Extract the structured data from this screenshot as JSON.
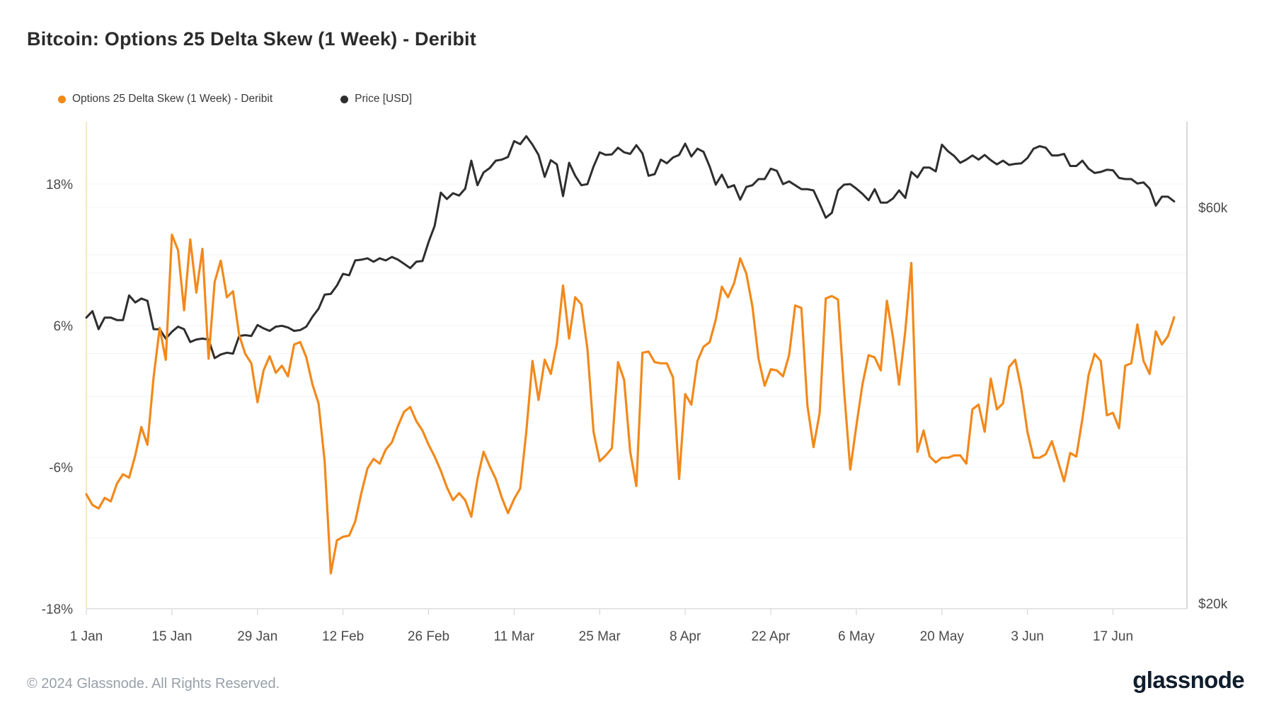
{
  "title": "Bitcoin: Options 25 Delta Skew (1 Week) - Deribit",
  "legend": {
    "items": [
      {
        "label": "Options 25 Delta Skew (1 Week) - Deribit",
        "color": "#F2891B"
      },
      {
        "label": "Price [USD]",
        "color": "#2E2E2E"
      }
    ]
  },
  "footer": {
    "copyright": "© 2024 Glassnode. All Rights Reserved."
  },
  "logo_text": "glassnode",
  "chart_data": {
    "type": "line",
    "x_start_date": "1 Jan",
    "x_tick_labels": [
      "1 Jan",
      "15 Jan",
      "29 Jan",
      "12 Feb",
      "26 Feb",
      "11 Mar",
      "25 Mar",
      "8 Apr",
      "22 Apr",
      "6 May",
      "20 May",
      "3 Jun",
      "17 Jun"
    ],
    "x_tick_day_indices": [
      0,
      14,
      28,
      42,
      56,
      70,
      84,
      98,
      112,
      126,
      140,
      154,
      168
    ],
    "y_axis_left": {
      "title": "skew percent",
      "tick_labels": [
        "18%",
        "6%",
        "-6%",
        "-18%"
      ],
      "tick_values": [
        18,
        6,
        -6,
        -18
      ],
      "gridline_values": [
        18,
        12,
        6,
        0,
        -6,
        -12,
        -18
      ],
      "range": [
        -18,
        23.3
      ]
    },
    "y_axis_right": {
      "title": "price USD",
      "tick_labels": [
        "$60k",
        "$20k"
      ],
      "tick_values": [
        60000,
        20000
      ],
      "gridline_values": [
        60,
        50,
        40,
        30,
        20
      ],
      "scale": "log"
    },
    "grid": "on",
    "legend_position": "top-left",
    "series": [
      {
        "name": "Options 25 Delta Skew (1 Week) - Deribit",
        "axis": "left",
        "unit": "%",
        "color": "#F2891B",
        "values": [
          -8.3,
          -9.2,
          -9.5,
          -8.6,
          -8.9,
          -7.4,
          -6.6,
          -6.9,
          -5.0,
          -2.6,
          -4.1,
          1.6,
          5.8,
          3.1,
          13.7,
          12.4,
          7.3,
          13.3,
          8.8,
          12.5,
          3.2,
          9.7,
          11.5,
          8.4,
          8.9,
          5.2,
          3.6,
          2.8,
          -0.5,
          2.2,
          3.4,
          2.0,
          2.6,
          1.7,
          4.4,
          4.6,
          3.3,
          1.0,
          -0.6,
          -5.5,
          -15.0,
          -12.2,
          -11.9,
          -11.8,
          -10.6,
          -8.2,
          -6.1,
          -5.3,
          -5.7,
          -4.5,
          -3.9,
          -2.5,
          -1.3,
          -0.9,
          -2.1,
          -2.9,
          -4.1,
          -5.1,
          -6.3,
          -7.7,
          -8.8,
          -8.2,
          -8.8,
          -10.2,
          -7.0,
          -4.7,
          -5.9,
          -7.0,
          -8.6,
          -9.9,
          -8.7,
          -7.8,
          -3.0,
          3.0,
          -0.3,
          3.1,
          1.9,
          4.5,
          9.4,
          4.9,
          8.4,
          7.8,
          4.0,
          -3.0,
          -5.5,
          -5.0,
          -4.4,
          2.9,
          1.4,
          -4.7,
          -7.6,
          3.7,
          3.8,
          2.9,
          2.8,
          2.8,
          1.6,
          -7.0,
          0.2,
          -0.7,
          3.0,
          4.2,
          4.6,
          6.5,
          9.3,
          8.4,
          9.6,
          11.7,
          10.4,
          7.6,
          3.2,
          0.9,
          2.3,
          2.2,
          1.7,
          3.5,
          7.7,
          7.5,
          -0.8,
          -4.3,
          -1.4,
          8.3,
          8.5,
          8.2,
          0.5,
          -6.2,
          -2.5,
          1.0,
          3.5,
          3.3,
          2.2,
          8.1,
          5.0,
          1.0,
          5.5,
          11.3,
          -4.7,
          -2.9,
          -5.1,
          -5.6,
          -5.2,
          -5.2,
          -5.0,
          -5.0,
          -5.7,
          -1.1,
          -0.7,
          -3.0,
          1.5,
          -1.1,
          -0.6,
          2.5,
          3.1,
          0.6,
          -3.0,
          -5.2,
          -5.2,
          -4.9,
          -3.8,
          -5.5,
          -7.2,
          -4.8,
          -5.1,
          -1.9,
          1.8,
          3.6,
          3.0,
          -1.6,
          -1.4,
          -2.7,
          2.6,
          2.8,
          6.1,
          3.0,
          1.9,
          5.5,
          4.4,
          5.1,
          6.7
        ]
      },
      {
        "name": "Price [USD]",
        "axis": "right",
        "unit": "$k",
        "color": "#2E2E2E",
        "values": [
          44.2,
          45.0,
          42.8,
          44.2,
          44.2,
          43.9,
          43.9,
          47.0,
          46.1,
          46.6,
          46.3,
          42.8,
          42.8,
          41.7,
          42.5,
          43.1,
          42.8,
          41.3,
          41.6,
          41.7,
          41.6,
          39.5,
          39.9,
          40.1,
          40.0,
          42.0,
          42.1,
          42.0,
          43.3,
          42.9,
          42.6,
          43.1,
          43.2,
          43.0,
          42.6,
          42.7,
          43.1,
          44.3,
          45.3,
          47.1,
          47.2,
          48.3,
          49.9,
          49.7,
          51.8,
          51.9,
          52.1,
          51.6,
          52.1,
          51.8,
          52.3,
          51.9,
          51.3,
          50.7,
          51.6,
          51.7,
          54.5,
          57.0,
          62.5,
          61.4,
          62.4,
          62.0,
          63.2,
          68.3,
          63.8,
          66.1,
          66.9,
          68.3,
          68.5,
          69.0,
          72.1,
          71.5,
          73.1,
          71.4,
          69.4,
          65.3,
          68.4,
          67.6,
          61.9,
          67.9,
          65.5,
          63.8,
          64.0,
          67.2,
          69.9,
          69.4,
          69.5,
          70.8,
          69.9,
          69.6,
          71.3,
          69.7,
          65.5,
          65.8,
          68.5,
          67.8,
          68.9,
          69.4,
          71.6,
          69.1,
          70.6,
          70.0,
          67.2,
          63.9,
          65.7,
          63.4,
          63.8,
          61.3,
          63.5,
          63.8,
          64.9,
          64.9,
          66.8,
          66.4,
          64.0,
          64.5,
          63.8,
          63.1,
          63.1,
          62.9,
          60.6,
          58.3,
          59.1,
          62.9,
          63.9,
          64.0,
          63.2,
          62.3,
          61.2,
          63.1,
          60.8,
          60.8,
          61.5,
          62.9,
          61.6,
          66.2,
          65.2,
          67.0,
          67.0,
          66.3,
          71.4,
          70.1,
          69.2,
          67.9,
          68.5,
          69.3,
          68.5,
          69.4,
          68.4,
          67.6,
          68.3,
          67.5,
          67.7,
          67.8,
          68.8,
          70.6,
          71.1,
          70.8,
          69.3,
          69.3,
          69.6,
          67.3,
          67.3,
          68.3,
          66.8,
          66.0,
          66.2,
          66.6,
          66.5,
          65.1,
          64.9,
          64.9,
          64.1,
          64.3,
          63.2,
          60.3,
          61.8,
          61.8,
          61.0
        ]
      }
    ]
  }
}
